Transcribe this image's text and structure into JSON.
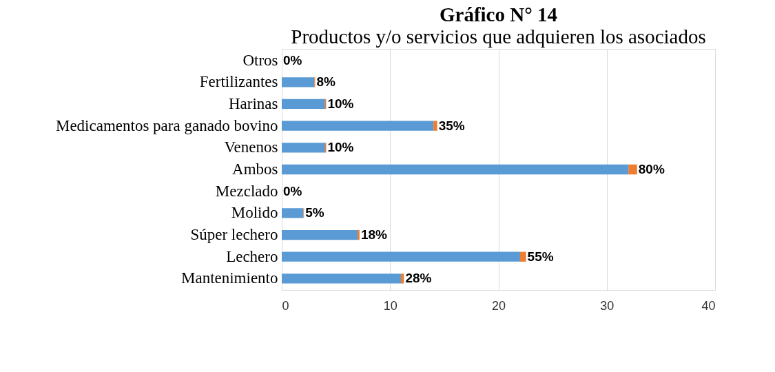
{
  "chart_data": {
    "type": "bar",
    "orientation": "horizontal",
    "stacked": true,
    "title": "Gráfico N° 14",
    "subtitle": "Productos y/o servicios que adquieren los asociados",
    "categories": [
      "Otros",
      "Fertilizantes",
      "Harinas",
      "Medicamentos para ganado bovino",
      "Venenos",
      "Ambos",
      "Mezclado",
      "Molido",
      "Súper lechero",
      "Lechero",
      "Mantenimiento"
    ],
    "series": [
      {
        "color": "#5b9bd5",
        "values": [
          0,
          3,
          4,
          14,
          4,
          32,
          0,
          2,
          7,
          22,
          11
        ]
      },
      {
        "color": "#ed7d31",
        "values": [
          0,
          0.08,
          0.1,
          0.35,
          0.1,
          0.8,
          0,
          0.05,
          0.18,
          0.55,
          0.28
        ],
        "value_labels": [
          "0%",
          "8%",
          "10%",
          "35%",
          "10%",
          "80%",
          "0%",
          "5%",
          "18%",
          "55%",
          "28%"
        ]
      }
    ],
    "xlim": [
      0,
      40
    ],
    "xticks": [
      0,
      10,
      20,
      30,
      40
    ],
    "grid": "x"
  }
}
